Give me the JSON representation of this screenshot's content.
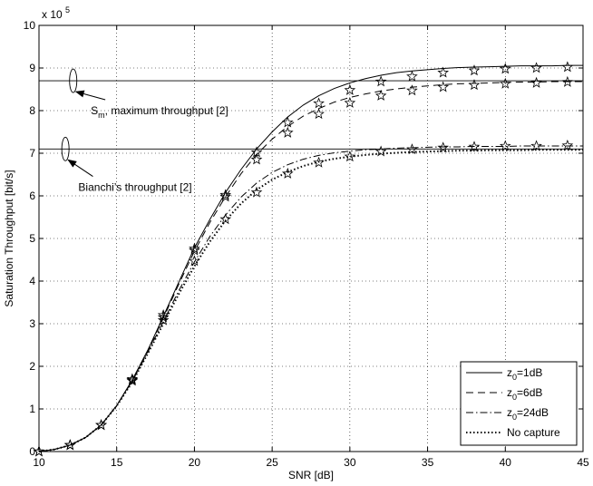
{
  "chart_data": {
    "type": "line",
    "xlabel": "SNR [dB]",
    "ylabel": "Saturation Throughput [bit/s]",
    "y_scale_base": "x 10",
    "y_scale_exp": "5",
    "xlim": [
      10,
      45
    ],
    "ylim": [
      0,
      10
    ],
    "x_ticks": [
      "10",
      "15",
      "20",
      "25",
      "30",
      "35",
      "40",
      "45"
    ],
    "y_ticks": [
      "0",
      "1",
      "2",
      "3",
      "4",
      "5",
      "6",
      "7",
      "8",
      "9",
      "10"
    ],
    "grid": true,
    "legend_position": "bottom-right",
    "series": [
      {
        "name_base": "z",
        "name_sub": "0",
        "name_rest": "=1dB",
        "style": "solid",
        "x": [
          10,
          11,
          12,
          13,
          14,
          15,
          16,
          17,
          18,
          19,
          20,
          21,
          22,
          23,
          24,
          25,
          26,
          27,
          28,
          29,
          30,
          31,
          32,
          33,
          34,
          35,
          36,
          37,
          38,
          39,
          40,
          41,
          42,
          43,
          44,
          45
        ],
        "y": [
          0.0,
          0.05,
          0.15,
          0.33,
          0.62,
          1.08,
          1.68,
          2.38,
          3.17,
          3.98,
          4.78,
          5.45,
          6.08,
          6.62,
          7.1,
          7.5,
          7.85,
          8.13,
          8.35,
          8.52,
          8.65,
          8.75,
          8.83,
          8.89,
          8.93,
          8.96,
          8.99,
          9.01,
          9.02,
          9.03,
          9.04,
          9.05,
          9.05,
          9.05,
          9.06,
          9.06
        ],
        "markers_x": [
          10,
          12,
          14,
          16,
          18,
          20,
          22,
          24,
          26,
          28,
          30,
          32,
          34,
          36,
          38,
          40,
          42,
          44
        ],
        "markers_y": [
          0.0,
          0.15,
          0.62,
          1.7,
          3.2,
          4.76,
          6.02,
          7.02,
          7.72,
          8.17,
          8.48,
          8.68,
          8.8,
          8.89,
          8.94,
          8.98,
          9.0,
          9.02
        ]
      },
      {
        "name_base": "z",
        "name_sub": "0",
        "name_rest": "=6dB",
        "style": "dashed",
        "x": [
          10,
          11,
          12,
          13,
          14,
          15,
          16,
          17,
          18,
          19,
          20,
          21,
          22,
          23,
          24,
          25,
          26,
          27,
          28,
          29,
          30,
          31,
          32,
          33,
          34,
          35,
          36,
          37,
          38,
          39,
          40,
          41,
          42,
          43,
          44,
          45
        ],
        "y": [
          0.0,
          0.05,
          0.15,
          0.33,
          0.62,
          1.08,
          1.67,
          2.36,
          3.13,
          3.93,
          4.7,
          5.38,
          5.98,
          6.52,
          6.97,
          7.33,
          7.63,
          7.87,
          8.05,
          8.2,
          8.31,
          8.39,
          8.46,
          8.51,
          8.55,
          8.58,
          8.61,
          8.63,
          8.64,
          8.65,
          8.66,
          8.67,
          8.67,
          8.68,
          8.68,
          8.68
        ],
        "markers_x": [
          10,
          12,
          14,
          16,
          18,
          20,
          22,
          24,
          26,
          28,
          30,
          32,
          34,
          36,
          38,
          40,
          42,
          44
        ],
        "markers_y": [
          0.0,
          0.15,
          0.62,
          1.68,
          3.15,
          4.72,
          5.98,
          6.85,
          7.48,
          7.92,
          8.18,
          8.35,
          8.47,
          8.55,
          8.6,
          8.63,
          8.65,
          8.67
        ]
      },
      {
        "name_base": "z",
        "name_sub": "0",
        "name_rest": "=24dB",
        "style": "dashdot",
        "x": [
          10,
          11,
          12,
          13,
          14,
          15,
          16,
          17,
          18,
          19,
          20,
          21,
          22,
          23,
          24,
          25,
          26,
          27,
          28,
          29,
          30,
          31,
          32,
          33,
          34,
          35,
          36,
          37,
          38,
          39,
          40,
          41,
          42,
          43,
          44,
          45
        ],
        "y": [
          0.0,
          0.05,
          0.15,
          0.33,
          0.62,
          1.08,
          1.65,
          2.33,
          3.05,
          3.78,
          4.45,
          5.05,
          5.55,
          5.97,
          6.3,
          6.55,
          6.73,
          6.86,
          6.95,
          7.01,
          7.05,
          7.08,
          7.1,
          7.12,
          7.13,
          7.14,
          7.15,
          7.15,
          7.16,
          7.16,
          7.16,
          7.17,
          7.17,
          7.17,
          7.17,
          7.17
        ],
        "markers_x": [
          10,
          12,
          14,
          16,
          18,
          20,
          22,
          24,
          26,
          28,
          30,
          32,
          34,
          36,
          38,
          40,
          42,
          44
        ],
        "markers_y": [
          0.0,
          0.15,
          0.62,
          1.66,
          3.08,
          4.47,
          5.45,
          6.08,
          6.52,
          6.78,
          6.92,
          7.04,
          7.09,
          7.13,
          7.15,
          7.17,
          7.17,
          7.18
        ]
      },
      {
        "name": "No capture",
        "style": "dotted",
        "x": [
          10,
          11,
          12,
          13,
          14,
          15,
          16,
          17,
          18,
          19,
          20,
          21,
          22,
          23,
          24,
          25,
          26,
          27,
          28,
          29,
          30,
          31,
          32,
          33,
          34,
          35,
          36,
          37,
          38,
          39,
          40,
          41,
          42,
          43,
          44,
          45
        ],
        "y": [
          0.0,
          0.05,
          0.15,
          0.33,
          0.62,
          1.07,
          1.63,
          2.3,
          3.0,
          3.7,
          4.35,
          4.93,
          5.42,
          5.82,
          6.14,
          6.38,
          6.56,
          6.7,
          6.8,
          6.87,
          6.92,
          6.96,
          6.99,
          7.01,
          7.03,
          7.04,
          7.05,
          7.06,
          7.06,
          7.07,
          7.07,
          7.07,
          7.08,
          7.08,
          7.08,
          7.08
        ]
      }
    ],
    "hlines": [
      8.7,
      7.1
    ],
    "annotations": [
      {
        "base": "S",
        "sub": "m",
        "rest": ", maximum throughput [2]",
        "ellipse_x": 12.2,
        "ellipse_y": 8.7,
        "text_x": 13.8,
        "text_y": 8.0
      },
      {
        "base": "Bianchi’s throughput [2]",
        "sub": "",
        "rest": "",
        "ellipse_x": 11.7,
        "ellipse_y": 7.1,
        "text_x": 13.0,
        "text_y": 6.2
      }
    ]
  }
}
